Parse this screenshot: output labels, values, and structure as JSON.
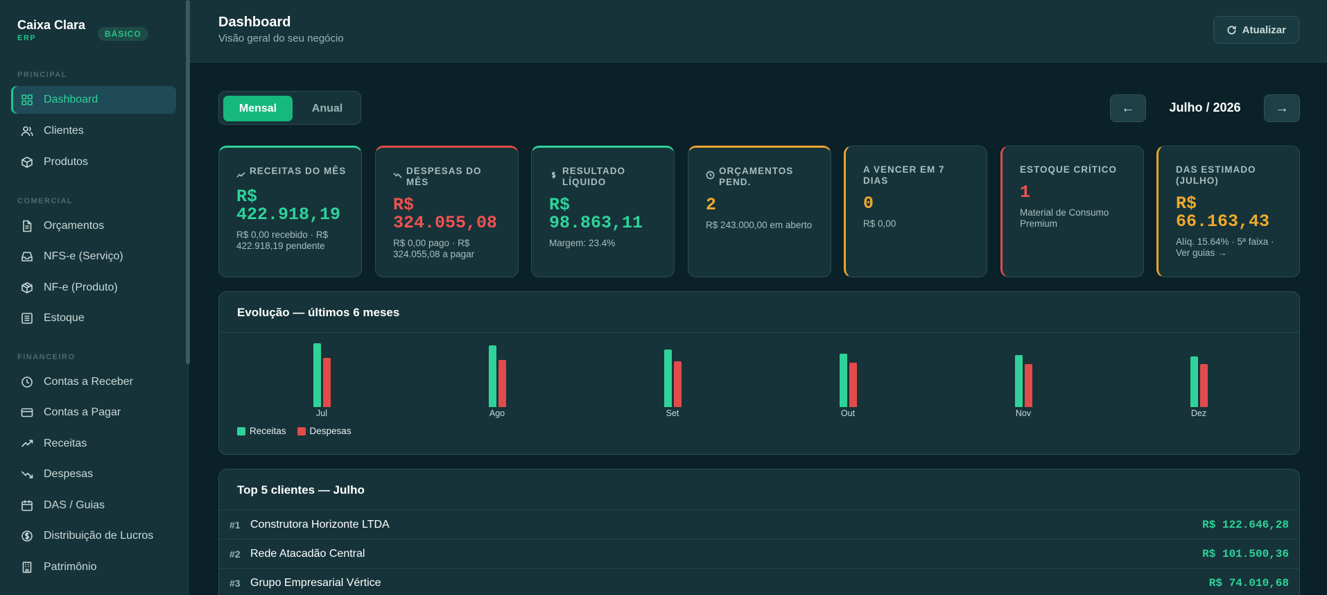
{
  "brand": {
    "name": "Caixa Clara",
    "sub": "ERP",
    "plan": "BÁSICO"
  },
  "sidebar": {
    "sections": [
      {
        "label": "PRINCIPAL",
        "items": [
          {
            "label": "Dashboard",
            "icon": "grid-icon",
            "active": true
          }
        ]
      },
      {
        "label": "COMERCIAL",
        "items": []
      },
      {
        "label": "FINANCEIRO",
        "items": []
      }
    ],
    "items": [
      {
        "label": "Dashboard",
        "icon": "grid-icon"
      },
      {
        "label": "Clientes",
        "icon": "users-icon"
      },
      {
        "label": "Produtos",
        "icon": "box-icon"
      },
      {
        "label": "Orçamentos",
        "icon": "document-icon"
      },
      {
        "label": "NFS-e (Serviço)",
        "icon": "inbox-icon"
      },
      {
        "label": "NF-e (Produto)",
        "icon": "package-icon"
      },
      {
        "label": "Estoque",
        "icon": "list-icon"
      },
      {
        "label": "Contas a Receber",
        "icon": "clock-icon"
      },
      {
        "label": "Contas a Pagar",
        "icon": "card-icon"
      },
      {
        "label": "Receitas",
        "icon": "trending-up-icon"
      },
      {
        "label": "Despesas",
        "icon": "trending-down-icon"
      },
      {
        "label": "DAS / Guias",
        "icon": "calendar-icon"
      },
      {
        "label": "Distribuição de Lucros",
        "icon": "dollar-circle-icon"
      },
      {
        "label": "Patrimônio",
        "icon": "building-icon"
      }
    ]
  },
  "header": {
    "title": "Dashboard",
    "subtitle": "Visão geral do seu negócio",
    "refresh_label": "Atualizar"
  },
  "view_toggle": {
    "monthly": "Mensal",
    "yearly": "Anual",
    "selected": "Mensal"
  },
  "period": {
    "prev": "←",
    "next": "→",
    "label": "Julho / 2026"
  },
  "kpis": [
    {
      "label": "Receitas do mês",
      "value": "R$ 422.918,19",
      "sub": "R$ 0,00 recebido · R$ 422.918,19 pendente",
      "color": "#2fd39a"
    },
    {
      "label": "Despesas do mês",
      "value": "R$ 324.055,08",
      "sub": "R$ 0,00 pago · R$ 324.055,08 a pagar",
      "color": "#f05252"
    },
    {
      "label": "Resultado líquido",
      "value": "R$ 98.863,11",
      "sub": "Margem: 23.4%",
      "color": "#2fd39a"
    },
    {
      "label": "Orçamentos pend.",
      "value": "2",
      "sub": "R$ 243.000,00 em aberto",
      "color": "#f0a92c"
    },
    {
      "label": "A vencer em 7 dias",
      "value": "0",
      "sub": "R$ 0,00",
      "color": "#f0a92c"
    },
    {
      "label": "Estoque crítico",
      "value": "1",
      "sub": "Material de Consumo Premium",
      "color": "#f05252"
    },
    {
      "label": "DAS estimado (Julho)",
      "value": "R$ 66.163,43",
      "sub": "Alíq. 15.64% · 5ª faixa · Ver guias →",
      "color": "#f0a92c"
    }
  ],
  "evolution": {
    "title": "Evolução — últimos 6 meses",
    "legend": {
      "revenue": "Receitas",
      "expenses": "Despesas"
    },
    "colors": {
      "revenue": "#2fd39a",
      "expenses": "#e34b4b"
    }
  },
  "chart_data": {
    "type": "bar",
    "title": "Evolução — últimos 6 meses",
    "categories": [
      "Jul",
      "Ago",
      "Set",
      "Out",
      "Nov",
      "Dez"
    ],
    "series": [
      {
        "name": "Receitas",
        "values": [
          422918,
          408000,
          381000,
          351000,
          342000,
          336000
        ]
      },
      {
        "name": "Despesas",
        "values": [
          324055,
          313000,
          303000,
          293000,
          285000,
          282000
        ]
      }
    ],
    "ylim": [
      0,
      440000
    ],
    "legend": "bottom-left",
    "grid": false
  },
  "top_clients": {
    "title": "Top 5 clientes — Julho",
    "rows": [
      {
        "rank": "#1",
        "name": "Construtora Horizonte LTDA",
        "amount": "R$ 122.646,28"
      },
      {
        "rank": "#2",
        "name": "Rede Atacadão Central",
        "amount": "R$ 101.500,36"
      },
      {
        "rank": "#3",
        "name": "Grupo Empresarial Vértice",
        "amount": "R$ 74.010,68"
      }
    ]
  }
}
